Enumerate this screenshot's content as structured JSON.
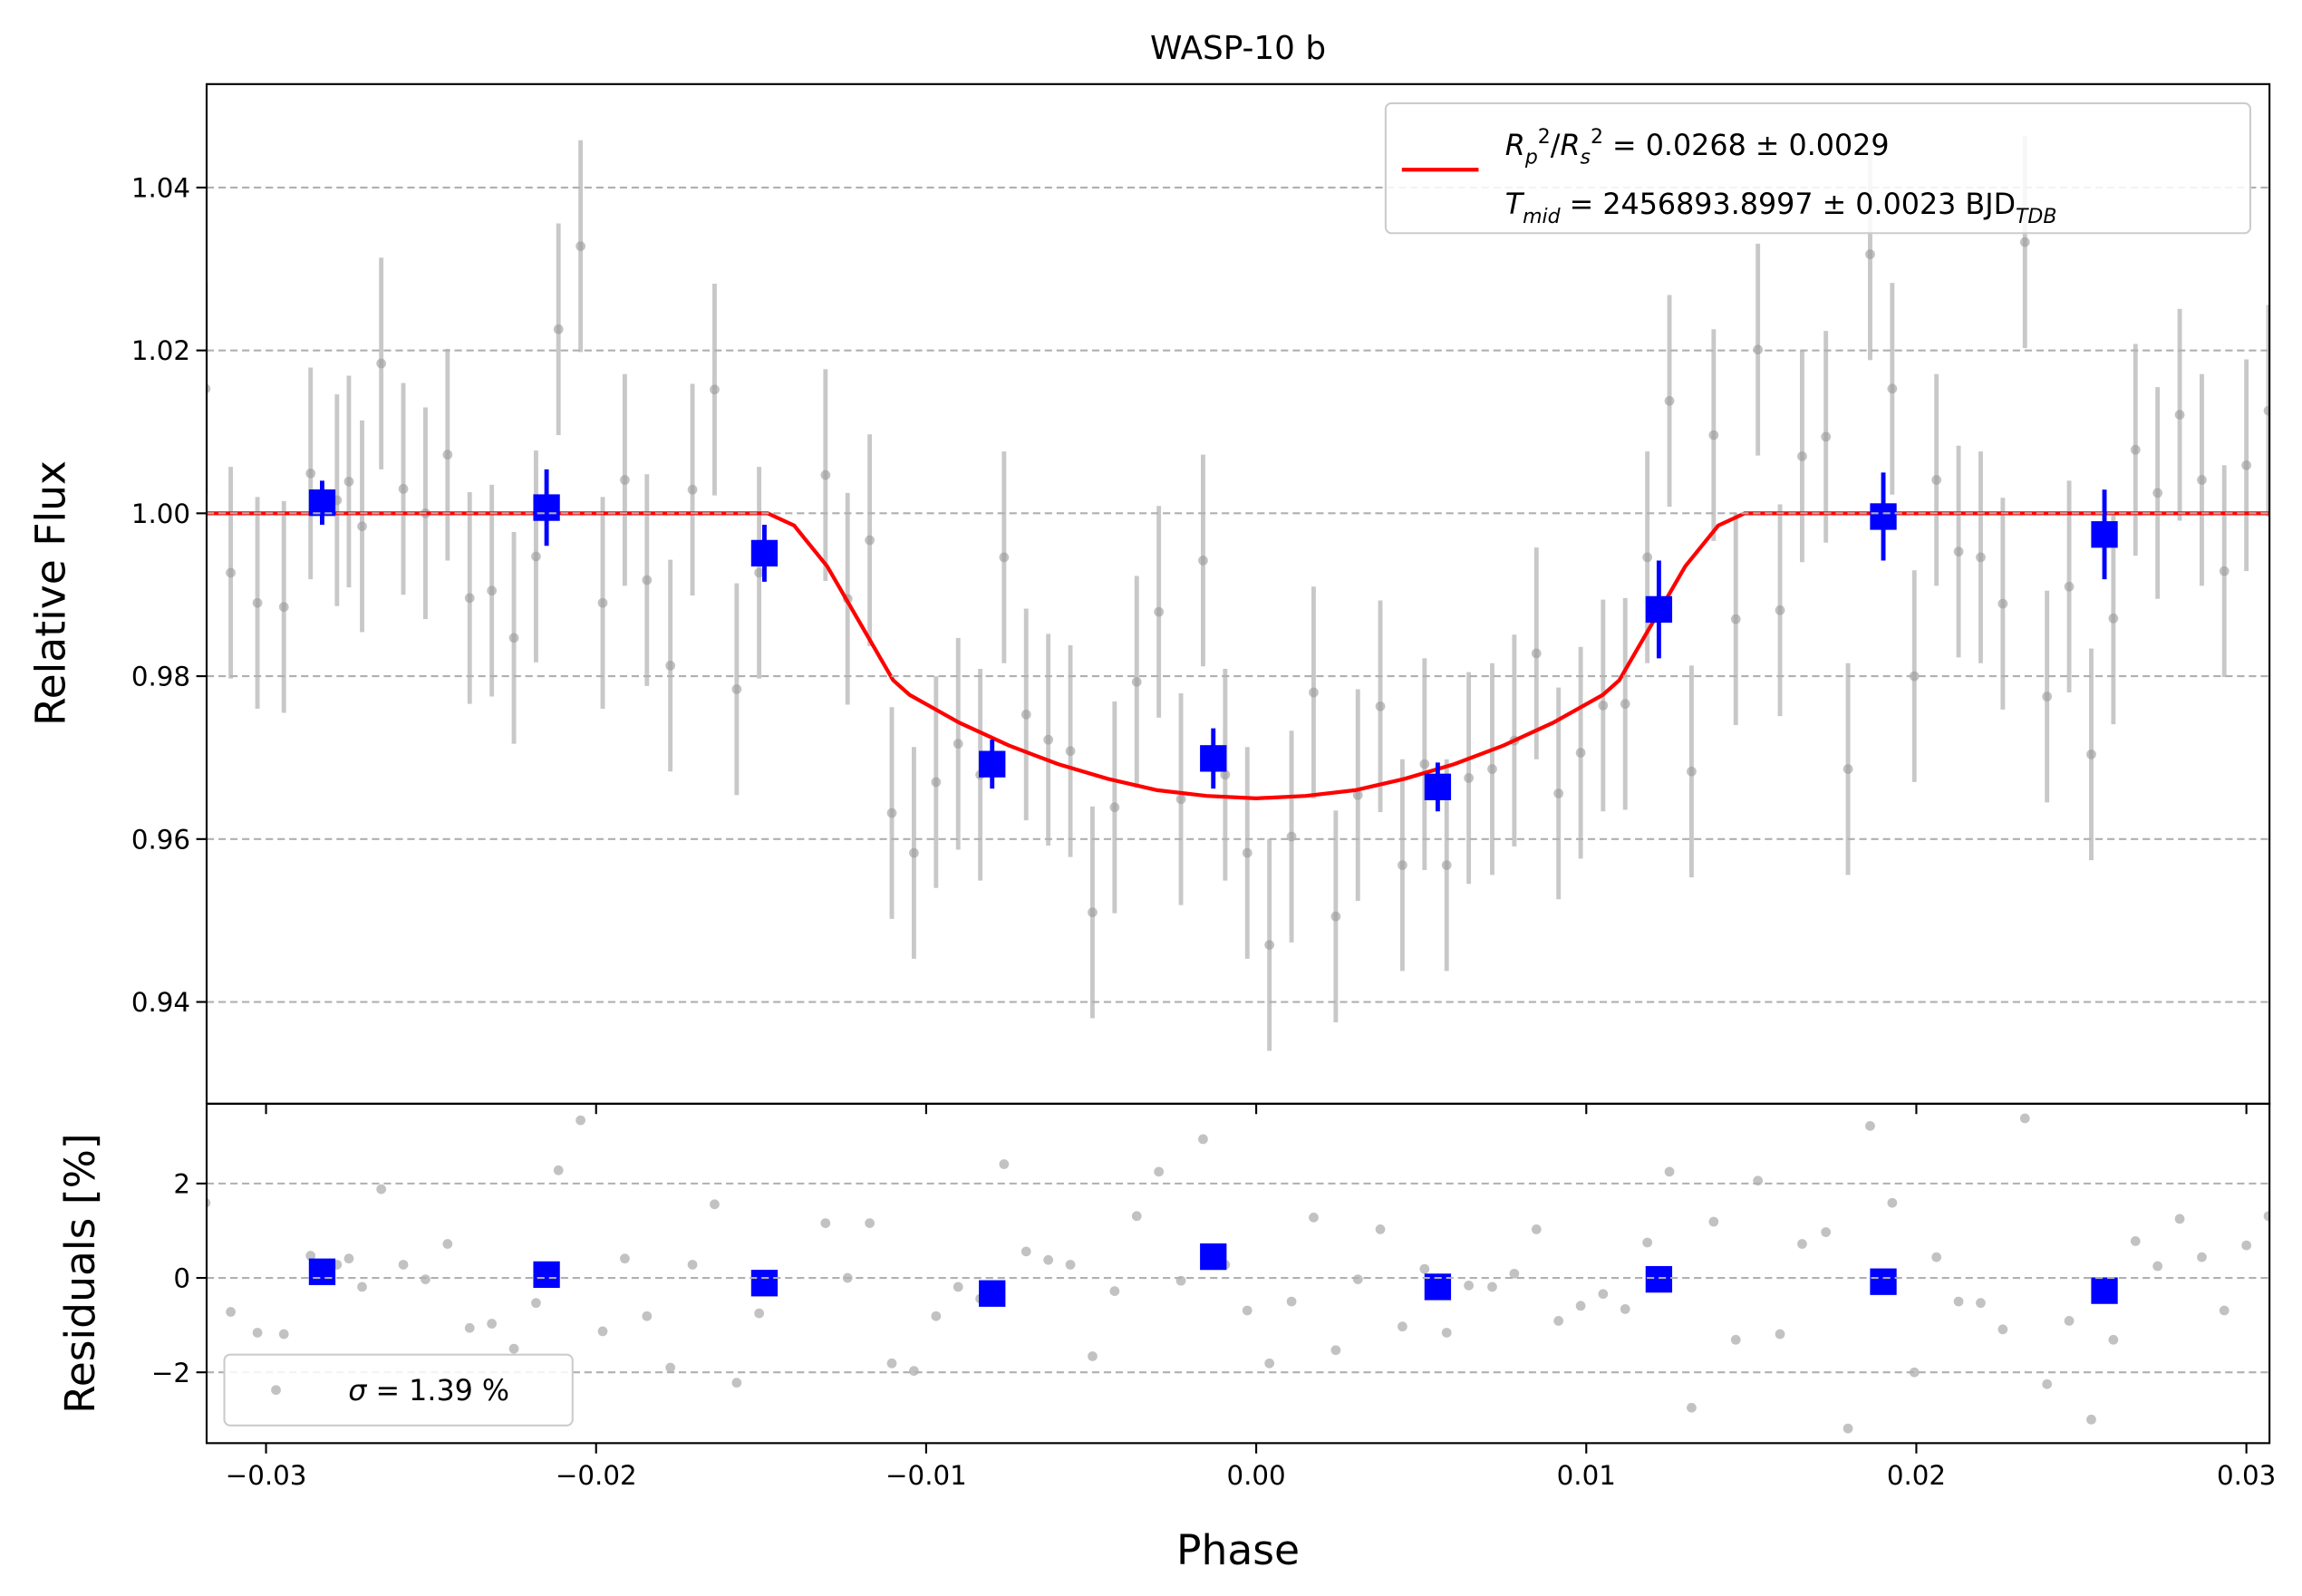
{
  "chart_data": [
    {
      "type": "scatter",
      "title": "WASP-10 b",
      "ylabel": "Relative Flux",
      "xlim": [
        -0.0318,
        0.0307
      ],
      "ylim": [
        0.9275,
        1.0527
      ],
      "yticks": [
        0.94,
        0.96,
        0.98,
        {
          "value": 1,
          "label": "1.00"
        },
        1.02,
        1.04
      ],
      "grid": true,
      "legend_loc": "upper right",
      "series": [
        {
          "type": "errorbar",
          "color": "#999999",
          "error_color": "#c8c8c8",
          "error": 0.013,
          "x": [
            -0.03183,
            -0.03107,
            -0.03026,
            -0.02946,
            -0.02865,
            -0.02785,
            -0.02749,
            -0.02709,
            -0.02651,
            -0.02584,
            -0.02517,
            -0.0245,
            -0.02383,
            -0.02316,
            -0.02249,
            -0.02182,
            -0.02114,
            -0.02047,
            -0.0198,
            -0.01913,
            -0.01846,
            -0.01775,
            -0.01708,
            -0.01641,
            -0.01574,
            -0.01506,
            -0.01305,
            -0.01238,
            -0.01171,
            -0.01104,
            -0.01037,
            -0.0097,
            -0.00903,
            -0.00836,
            -0.00764,
            -0.00697,
            -0.0063,
            -0.00563,
            -0.00496,
            -0.00429,
            -0.00362,
            -0.00295,
            -0.00228,
            -0.00161,
            -0.00094,
            -0.00027,
            0.0004,
            0.00107,
            0.00174,
            0.00241,
            0.00308,
            0.00376,
            0.00443,
            0.0051,
            0.00577,
            0.00644,
            0.00715,
            0.00782,
            0.00849,
            0.00916,
            0.00983,
            0.01051,
            0.01118,
            0.01185,
            0.01252,
            0.01319,
            0.01386,
            0.01453,
            0.0152,
            0.01587,
            0.01654,
            0.01726,
            0.01793,
            0.0186,
            0.01927,
            0.01994,
            0.02061,
            0.02128,
            0.02195,
            0.02262,
            0.02329,
            0.02396,
            0.02463,
            0.0253,
            0.02597,
            0.02664,
            0.02731,
            0.02798,
            0.02865,
            0.02933,
            0.03,
            0.03067
          ],
          "values": [
            1.0153,
            0.9927,
            0.989,
            0.9885,
            1.0049,
            1.0016,
            1.0039,
            0.9984,
            1.0184,
            1.003,
            1.0,
            1.0072,
            0.9896,
            0.9905,
            0.9847,
            0.9947,
            1.0226,
            1.0328,
            0.989,
            1.0041,
            0.9918,
            0.9813,
            1.0029,
            1.0152,
            0.9784,
            0.9927,
            1.0047,
            0.9895,
            0.9967,
            0.9632,
            0.9583,
            0.967,
            0.9717,
            0.9679,
            0.9946,
            0.9753,
            0.9722,
            0.9708,
            0.951,
            0.9639,
            0.9793,
            0.9879,
            0.9649,
            0.9942,
            0.9679,
            0.9583,
            0.947,
            0.9603,
            0.978,
            0.9505,
            0.9654,
            0.9763,
            0.9568,
            0.9692,
            0.9568,
            0.9675,
            0.9686,
            0.9721,
            0.9828,
            0.9656,
            0.9706,
            0.9764,
            0.9766,
            0.9946,
            1.0138,
            0.9683,
            1.0096,
            0.987,
            1.0201,
            0.9881,
            1.007,
            1.0094,
            0.9686,
            1.0318,
            1.0153,
            0.98,
            1.0041,
            0.9953,
            0.9946,
            0.9889,
            1.0333,
            0.9775,
            0.991,
            0.9704,
            0.9871,
            1.0078,
            1.0025,
            1.0121,
            1.0041,
            0.9929,
            1.0059,
            1.0126
          ]
        },
        {
          "type": "line",
          "color": "#ff0000",
          "name": [
            {
              "text": "R",
              "italic": true
            },
            {
              "text": "p",
              "italic": true,
              "sub": true
            },
            {
              "text": "2",
              "sup": true
            },
            {
              "text": "/"
            },
            {
              "text": "R",
              "italic": true
            },
            {
              "text": "s",
              "italic": true,
              "sub": true
            },
            {
              "text": "2",
              "sup": true
            },
            {
              "text": " = 0.0268 ± 0.0029"
            }
          ],
          "name2": [
            {
              "text": "T",
              "italic": true
            },
            {
              "text": "mid",
              "italic": true,
              "sub": true
            },
            {
              "text": " = 2456893.8997 ± 0.0023 BJD"
            },
            {
              "text": "TDB",
              "italic": true,
              "sub": true
            }
          ],
          "x": [
            -0.0318,
            -0.0148,
            -0.014,
            -0.013,
            -0.012,
            -0.011,
            -0.0105,
            -0.009,
            -0.0075,
            -0.006,
            -0.0045,
            -0.003,
            -0.0015,
            0,
            0.0015,
            0.003,
            0.0045,
            0.006,
            0.0075,
            0.009,
            0.0105,
            0.011,
            0.012,
            0.013,
            0.014,
            0.0148,
            0.0307
          ],
          "values": [
            1,
            1,
            0.9985,
            0.9935,
            0.9865,
            0.9795,
            0.9777,
            0.9743,
            0.9715,
            0.9692,
            0.9674,
            0.966,
            0.9653,
            0.965,
            0.9653,
            0.966,
            0.9674,
            0.9692,
            0.9715,
            0.9743,
            0.9777,
            0.9795,
            0.9865,
            0.9935,
            0.9985,
            1,
            1
          ]
        },
        {
          "type": "binned",
          "color": "#0000ff",
          "x": [
            -0.0283,
            -0.0215,
            -0.0149,
            -0.008,
            -0.0013,
            0.0055,
            0.0122,
            0.019,
            0.0257
          ],
          "values": [
            1.0013,
            1.0007,
            0.9951,
            0.9692,
            0.9699,
            0.9664,
            0.9882,
            0.9996,
            0.9974
          ],
          "errors": [
            0.0027,
            0.0047,
            0.0035,
            0.003,
            0.0037,
            0.003,
            0.006,
            0.0054,
            0.0055
          ]
        }
      ]
    },
    {
      "type": "scatter",
      "xlabel": "Phase",
      "ylabel": "Residuals [%]",
      "xlim": [
        -0.0318,
        0.0307
      ],
      "ylim": [
        -3.5,
        3.69
      ],
      "xticks": [
        {
          "value": -0.03,
          "label": "−0.03"
        },
        {
          "value": -0.02,
          "label": "−0.02"
        },
        {
          "value": -0.01,
          "label": "−0.01"
        },
        {
          "value": 0,
          "label": "0.00"
        },
        0.01,
        0.02,
        0.03
      ],
      "yticks": [
        {
          "value": -2,
          "label": "−2"
        },
        0,
        2
      ],
      "grid": true,
      "legend_loc": "lower left",
      "series": [
        {
          "type": "points",
          "color": "#999999",
          "name": [
            {
              "text": "σ",
              "italic": true
            },
            {
              "text": " = 1.39 %"
            }
          ],
          "x": [
            -0.03183,
            -0.03107,
            -0.03026,
            -0.02946,
            -0.02865,
            -0.02785,
            -0.02749,
            -0.02709,
            -0.02651,
            -0.02584,
            -0.02517,
            -0.0245,
            -0.02383,
            -0.02316,
            -0.02249,
            -0.02182,
            -0.02114,
            -0.02047,
            -0.0198,
            -0.01913,
            -0.01846,
            -0.01775,
            -0.01708,
            -0.01641,
            -0.01574,
            -0.01506,
            -0.01305,
            -0.01238,
            -0.01171,
            -0.01104,
            -0.01037,
            -0.0097,
            -0.00903,
            -0.00836,
            -0.00764,
            -0.00697,
            -0.0063,
            -0.00563,
            -0.00496,
            -0.00429,
            -0.00362,
            -0.00295,
            -0.00228,
            -0.00161,
            -0.00094,
            -0.00027,
            0.0004,
            0.00107,
            0.00174,
            0.00241,
            0.00308,
            0.00376,
            0.00443,
            0.0051,
            0.00577,
            0.00644,
            0.00715,
            0.00782,
            0.00849,
            0.00916,
            0.00983,
            0.01051,
            0.01118,
            0.01185,
            0.01252,
            0.01319,
            0.01386,
            0.01453,
            0.0152,
            0.01587,
            0.01654,
            0.01726,
            0.01793,
            0.0186,
            0.01927,
            0.01994,
            0.02061,
            0.02128,
            0.02195,
            0.02262,
            0.02329,
            0.02396,
            0.02463,
            0.0253,
            0.02597,
            0.02664,
            0.02731,
            0.02798,
            0.02865,
            0.02933,
            0.03,
            0.03067
          ],
          "values": [
            1.59,
            -0.72,
            -1.16,
            -1.19,
            0.47,
            0.28,
            0.41,
            -0.19,
            1.88,
            0.28,
            -0.03,
            0.72,
            -1.06,
            -0.97,
            -1.5,
            -0.53,
            2.28,
            3.34,
            -1.13,
            0.41,
            -0.81,
            -1.9,
            0.28,
            1.56,
            -2.22,
            -0.75,
            1.16,
            0,
            1.16,
            -1.81,
            -1.97,
            -0.81,
            -0.19,
            -0.44,
            2.41,
            0.56,
            0.38,
            0.28,
            -1.66,
            -0.28,
            1.31,
            2.25,
            -0.06,
            2.94,
            0.28,
            -0.69,
            -1.81,
            -0.5,
            1.28,
            -1.53,
            -0.03,
            1.03,
            -1.03,
            0.19,
            -1.16,
            -0.16,
            -0.19,
            0.09,
            1.03,
            -0.91,
            -0.59,
            -0.34,
            -0.66,
            0.75,
            2.25,
            -2.75,
            1.19,
            -1.31,
            2.06,
            -1.19,
            0.72,
            0.97,
            -3.19,
            3.22,
            1.59,
            -2.0,
            0.44,
            -0.5,
            -0.53,
            -1.09,
            3.38,
            -2.25,
            -0.91,
            -3.0,
            -1.31,
            0.78,
            0.25,
            1.25,
            0.44,
            -0.69,
            0.69,
            1.31
          ]
        },
        {
          "type": "binned",
          "color": "#0000ff",
          "x": [
            -0.0283,
            -0.0215,
            -0.0149,
            -0.008,
            -0.0013,
            0.0055,
            0.0122,
            0.019,
            0.0257
          ],
          "values": [
            0.13,
            0.07,
            -0.11,
            -0.33,
            0.45,
            -0.19,
            -0.03,
            -0.08,
            -0.27
          ]
        }
      ]
    }
  ]
}
